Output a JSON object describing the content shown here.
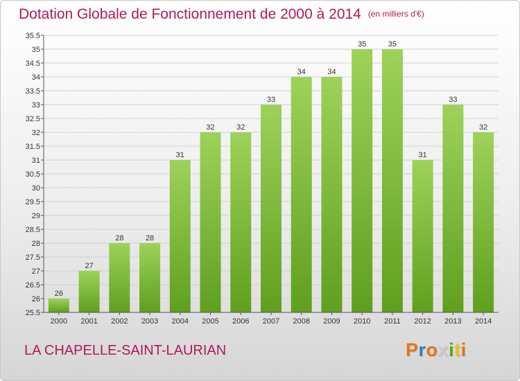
{
  "header": {
    "title": "Dotation Globale de Fonctionnement de 2000 à 2014",
    "unit": "(en milliers d'€)"
  },
  "footer": {
    "commune": "LA CHAPELLE-SAINT-LAURIAN",
    "logo_text": "Proxiti",
    "logo_colors": [
      "#e8731a",
      "#2f7fc1",
      "#e8731a",
      "#c8c8c8",
      "#5aa52a",
      "#e8c21a",
      "#e8731a"
    ]
  },
  "colors": {
    "title": "#b0195a",
    "bar_light": "#9ed25a",
    "bar_dark": "#5f9f1f",
    "axis": "#555555",
    "grid": "#d0d0d0"
  },
  "chart_data": {
    "type": "bar",
    "title": "Dotation Globale de Fonctionnement de 2000 à 2014",
    "subtitle": "(en milliers d'€)",
    "xlabel": "",
    "ylabel": "",
    "categories": [
      "2000",
      "2001",
      "2002",
      "2003",
      "2004",
      "2005",
      "2006",
      "2007",
      "2008",
      "2009",
      "2010",
      "2011",
      "2012",
      "2013",
      "2014"
    ],
    "values": [
      26,
      27,
      28,
      28,
      31,
      32,
      32,
      33,
      34,
      34,
      35,
      35,
      31,
      33,
      32
    ],
    "value_labels": [
      "26",
      "27",
      "28",
      "28",
      "31",
      "32",
      "32",
      "33",
      "34",
      "34",
      "35",
      "35",
      "31",
      "33",
      "32"
    ],
    "ylim": [
      25.5,
      35.5
    ],
    "yticks": [
      "25.5",
      "26",
      "26.5",
      "27",
      "27.5",
      "28",
      "28.5",
      "29",
      "29.5",
      "30",
      "30.5",
      "31",
      "31.5",
      "32",
      "32.5",
      "33",
      "33.5",
      "34",
      "34.5",
      "35",
      "35.5"
    ],
    "grid": true,
    "legend": "none"
  }
}
